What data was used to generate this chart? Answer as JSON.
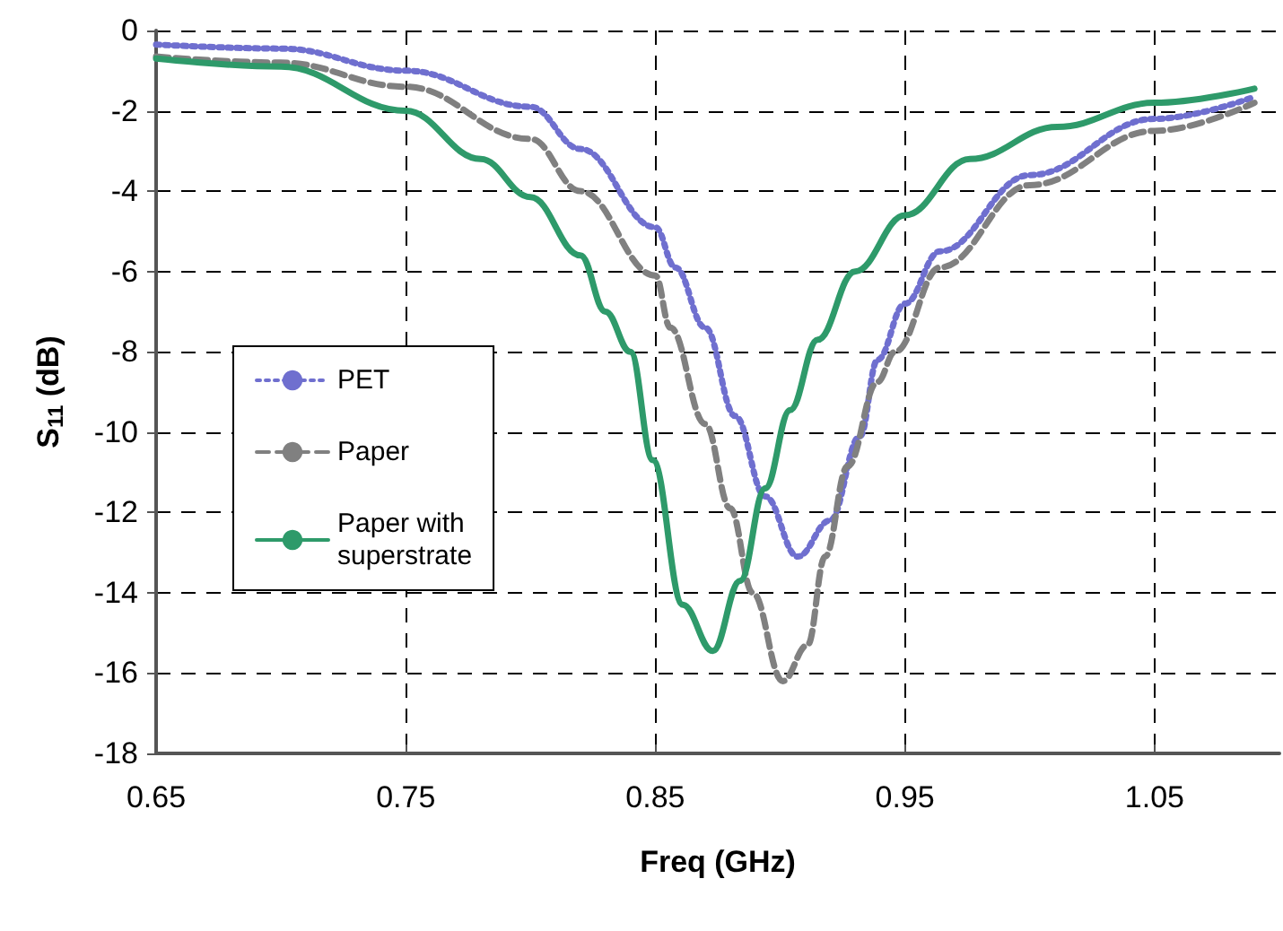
{
  "chart_data": {
    "type": "line",
    "xlabel": "Freq (GHz)",
    "ylabel": "S$_{11}$ (dB)",
    "xlim": [
      0.65,
      1.1
    ],
    "xticks": [
      0.65,
      0.75,
      0.85,
      0.95,
      1.05
    ],
    "ylim": [
      -18,
      0
    ],
    "yticks": [
      -18,
      -16,
      -14,
      -12,
      -10,
      -8,
      -6,
      -4,
      -2,
      0
    ],
    "grid": true,
    "legend": "left",
    "marker": "none",
    "series": [
      {
        "name": "PET",
        "color": "#6f6fcf",
        "line_style": "dotted",
        "x": [
          0.65,
          0.7,
          0.75,
          0.8,
          0.82,
          0.85,
          0.858,
          0.87,
          0.882,
          0.894,
          0.907,
          0.92,
          0.932,
          0.939,
          0.95,
          0.964,
          1.0,
          1.05,
          1.09
        ],
        "values": [
          -0.35,
          -0.45,
          -1.0,
          -1.9,
          -2.95,
          -4.9,
          -5.9,
          -7.4,
          -9.6,
          -11.6,
          -13.1,
          -12.2,
          -10.1,
          -8.2,
          -6.8,
          -5.5,
          -3.6,
          -2.2,
          -1.65
        ]
      },
      {
        "name": "Paper",
        "color": "#808080",
        "line_style": "dashed",
        "x": [
          0.65,
          0.7,
          0.75,
          0.8,
          0.82,
          0.85,
          0.856,
          0.87,
          0.88,
          0.889,
          0.901,
          0.911,
          0.918,
          0.927,
          0.939,
          0.946,
          0.964,
          1.0,
          1.05,
          1.09
        ],
        "values": [
          -0.65,
          -0.8,
          -1.4,
          -2.7,
          -4.0,
          -6.1,
          -7.4,
          -9.8,
          -11.9,
          -14.0,
          -16.2,
          -15.3,
          -13.1,
          -10.85,
          -8.75,
          -8.0,
          -5.9,
          -3.85,
          -2.5,
          -1.8
        ]
      },
      {
        "name": "Paper with superstrate",
        "color": "#2e9a6a",
        "line_style": "solid",
        "x": [
          0.65,
          0.7,
          0.75,
          0.78,
          0.8,
          0.82,
          0.83,
          0.84,
          0.849,
          0.861,
          0.873,
          0.884,
          0.894,
          0.904,
          0.915,
          0.93,
          0.95,
          0.976,
          1.011,
          1.05,
          1.09
        ],
        "values": [
          -0.7,
          -0.9,
          -2.0,
          -3.2,
          -4.15,
          -5.6,
          -7.0,
          -8.0,
          -10.7,
          -14.3,
          -15.45,
          -13.7,
          -11.4,
          -9.45,
          -7.7,
          -6.0,
          -4.6,
          -3.2,
          -2.4,
          -1.8,
          -1.45
        ]
      }
    ]
  }
}
